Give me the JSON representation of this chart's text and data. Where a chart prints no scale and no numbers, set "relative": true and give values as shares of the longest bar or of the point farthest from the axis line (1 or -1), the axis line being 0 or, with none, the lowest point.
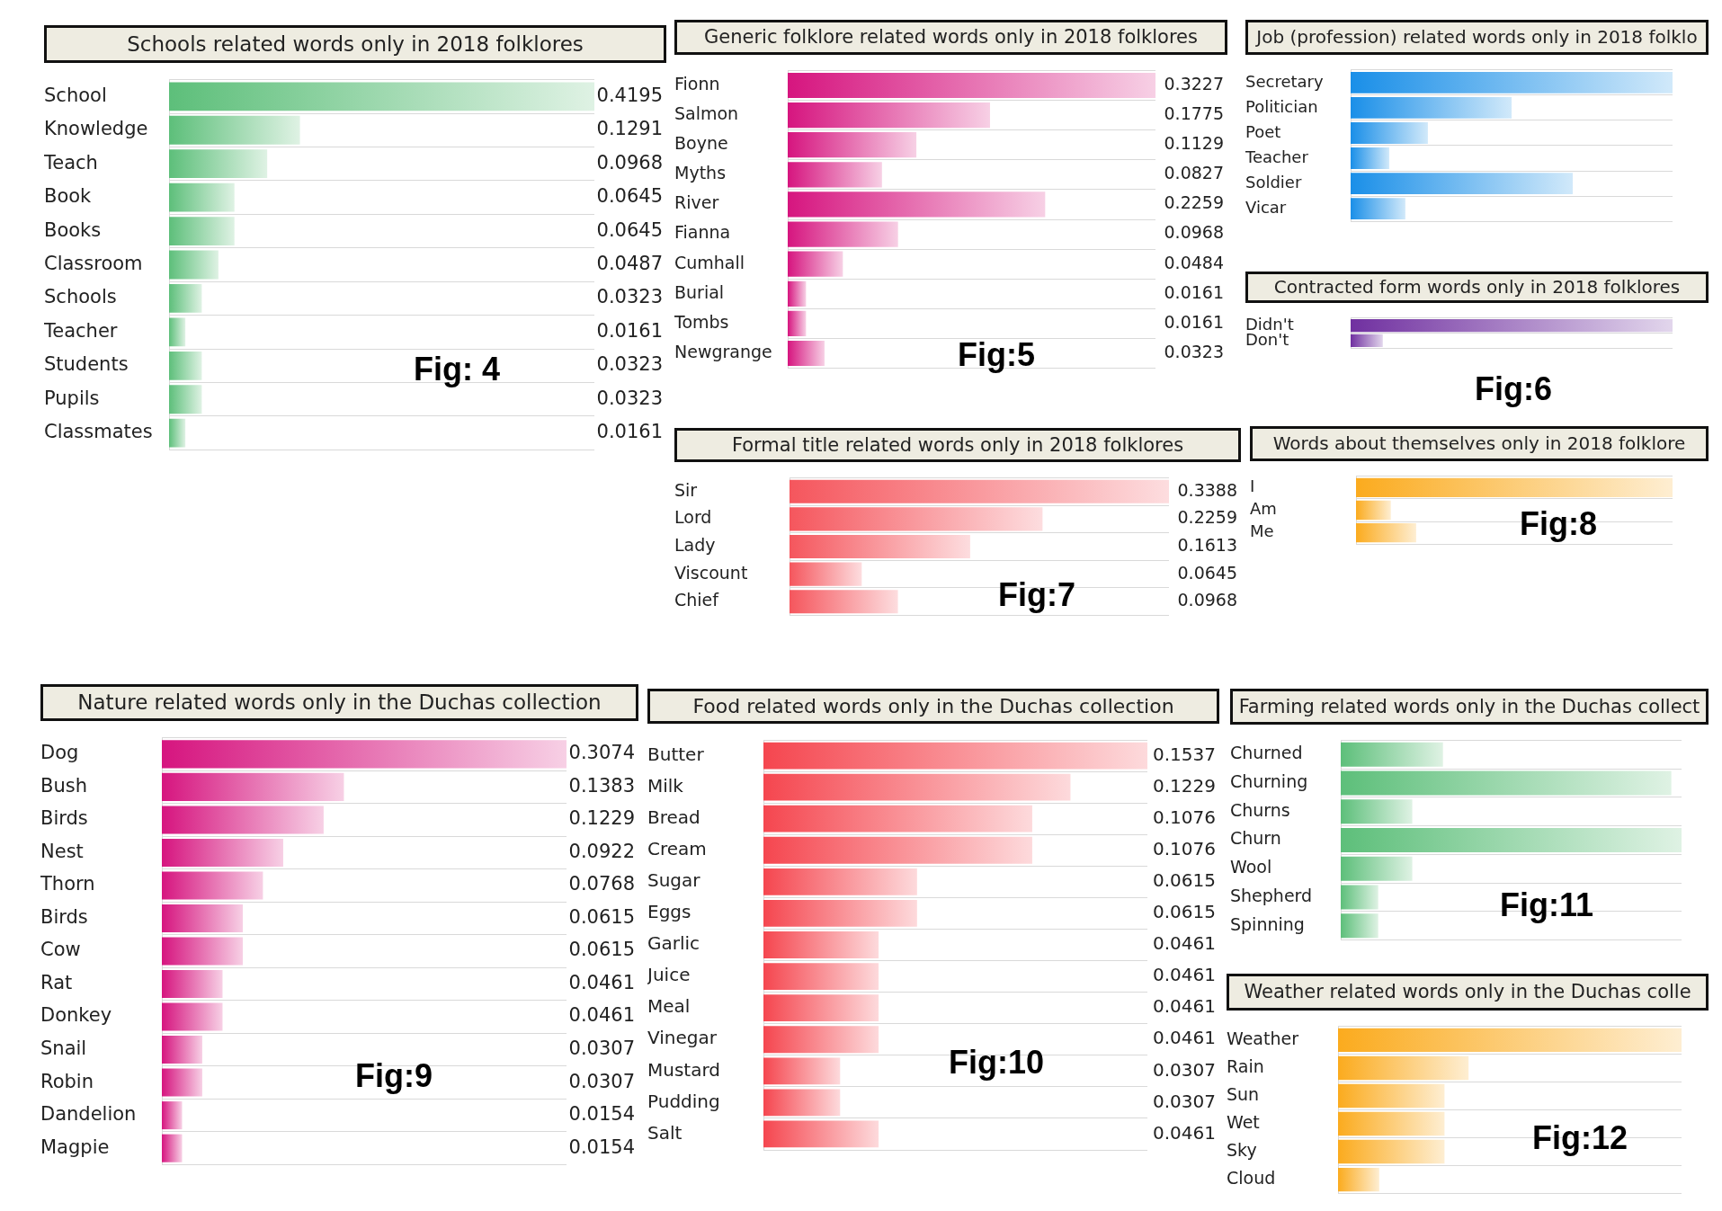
{
  "chart_data": [
    {
      "type": "bar",
      "orientation": "horizontal",
      "title": "Schools related words only in 2018 folklores",
      "categories": [
        "School",
        "Knowledge",
        "Teach",
        "Book",
        "Books",
        "Classroom",
        "Schools",
        "Teacher",
        "Students",
        "Pupils",
        "Classmates"
      ],
      "values": [
        0.4195,
        0.1291,
        0.0968,
        0.0645,
        0.0645,
        0.0487,
        0.0323,
        0.0161,
        0.0323,
        0.0323,
        0.0161
      ],
      "color": "#5dbf7a",
      "data_labels": true,
      "grid": "y",
      "annotations": [
        "Fig: 4"
      ]
    },
    {
      "type": "bar",
      "orientation": "horizontal",
      "title": "Generic folklore related words only in 2018 folklores",
      "categories": [
        "Fionn",
        "Salmon",
        "Boyne",
        "Myths",
        "River",
        "Fianna",
        "Cumhall",
        "Burial",
        "Tombs",
        "Newgrange"
      ],
      "values": [
        0.3227,
        0.1775,
        0.1129,
        0.0827,
        0.2259,
        0.0968,
        0.0484,
        0.0161,
        0.0161,
        0.0323
      ],
      "color": "#d6157f",
      "data_labels": true,
      "grid": "y",
      "annotations": [
        "Fig:5"
      ]
    },
    {
      "type": "bar",
      "orientation": "horizontal",
      "relative": true,
      "title": "Job (profession) related words only in 2018 folklo",
      "categories": [
        "Secretary",
        "Politician",
        "Poet",
        "Teacher",
        "Soldier",
        "Vicar"
      ],
      "values": [
        1,
        0.5,
        0.24,
        0.12,
        0.69,
        0.17
      ],
      "color": "#1a8fe8",
      "grid": "y"
    },
    {
      "type": "bar",
      "orientation": "horizontal",
      "relative": true,
      "title": "Contracted form words only in 2018 folklores",
      "categories": [
        "Didn't",
        "Don't"
      ],
      "values": [
        1,
        0.1
      ],
      "color": "#7030a0",
      "grid": "y",
      "annotations": [
        "Fig:6"
      ]
    },
    {
      "type": "bar",
      "orientation": "horizontal",
      "title": "Formal title related words only in 2018 folklores",
      "categories": [
        "Sir",
        "Lord",
        "Lady",
        "Viscount",
        "Chief"
      ],
      "values": [
        0.3388,
        0.2259,
        0.1613,
        0.0645,
        0.0968
      ],
      "color": "#f5565d",
      "data_labels": true,
      "grid": "y",
      "annotations": [
        "Fig:7"
      ]
    },
    {
      "type": "bar",
      "orientation": "horizontal",
      "relative": true,
      "title": "Words about themselves only in 2018 folklore",
      "categories": [
        "I",
        "Am",
        "Me"
      ],
      "values": [
        1,
        0.11,
        0.19
      ],
      "color": "#fbab1e",
      "grid": "y",
      "annotations": [
        "Fig:8"
      ]
    },
    {
      "type": "bar",
      "orientation": "horizontal",
      "title": "Nature related words only in the Duchas collection",
      "categories": [
        "Dog",
        "Bush",
        "Birds",
        "Nest",
        "Thorn",
        "Birds",
        "Cow",
        "Rat",
        "Donkey",
        "Snail",
        "Robin",
        "Dandelion",
        "Magpie"
      ],
      "values": [
        0.3074,
        0.1383,
        0.1229,
        0.0922,
        0.0768,
        0.0615,
        0.0615,
        0.0461,
        0.0461,
        0.0307,
        0.0307,
        0.0154,
        0.0154
      ],
      "color": "#d6157f",
      "data_labels": true,
      "grid": "y",
      "annotations": [
        "Fig:9"
      ]
    },
    {
      "type": "bar",
      "orientation": "horizontal",
      "title": "Food related words only in the Duchas collection",
      "categories": [
        "Butter",
        "Milk",
        "Bread",
        "Cream",
        "Sugar",
        "Eggs",
        "Garlic",
        "Juice",
        "Meal",
        "Vinegar",
        "Mustard",
        "Pudding",
        "Salt"
      ],
      "values": [
        0.1537,
        0.1229,
        0.1076,
        0.1076,
        0.0615,
        0.0615,
        0.0461,
        0.0461,
        0.0461,
        0.0461,
        0.0307,
        0.0307,
        0.0461
      ],
      "color": "#f5464f",
      "data_labels": true,
      "grid": "y",
      "annotations": [
        "Fig:10"
      ]
    },
    {
      "type": "bar",
      "orientation": "horizontal",
      "relative": true,
      "title": "Farming related words only in the Duchas collect",
      "categories": [
        "Churned",
        "Churning",
        "Churns",
        "Churn",
        "Wool",
        "Shepherd",
        "Spinning"
      ],
      "values": [
        0.3,
        0.97,
        0.21,
        1,
        0.21,
        0.11,
        0.11
      ],
      "color": "#5dbf7a",
      "grid": "y",
      "annotations": [
        "Fig:11"
      ]
    },
    {
      "type": "bar",
      "orientation": "horizontal",
      "relative": true,
      "title": "Weather related words only in the Duchas colle",
      "categories": [
        "Weather",
        "Rain",
        "Sun",
        "Wet",
        "Sky",
        "Cloud"
      ],
      "values": [
        1,
        0.38,
        0.31,
        0.31,
        0.31,
        0.12
      ],
      "color": "#fbab1e",
      "grid": "y",
      "annotations": [
        "Fig:12"
      ]
    }
  ]
}
